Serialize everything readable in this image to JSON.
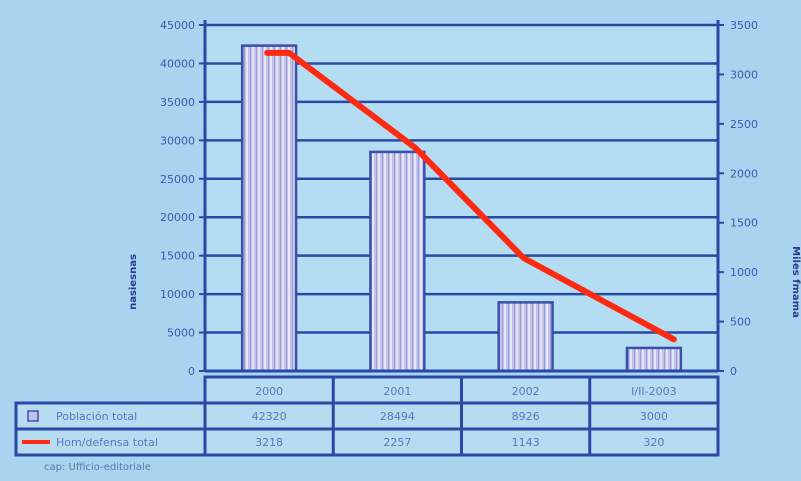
{
  "chart_data": {
    "type": "bar",
    "categories": [
      "2000",
      "2001",
      "2002",
      "I/II-2003"
    ],
    "left_axis": {
      "label": "nasiesnas",
      "ylim": [
        0,
        45000
      ],
      "ticks": [
        "0",
        "5000",
        "10000",
        "15000",
        "20000",
        "25000",
        "30000",
        "35000",
        "40000",
        "45000"
      ]
    },
    "right_axis": {
      "label": "Miles fmama",
      "ylim": [
        0,
        3500
      ],
      "ticks": [
        "0",
        "500",
        "1000",
        "1500",
        "2000",
        "2500",
        "3000",
        "3500"
      ]
    },
    "series": [
      {
        "name": "Población total",
        "kind": "bar",
        "axis": "left",
        "values": [
          42320,
          28494,
          8926,
          3000
        ],
        "table_values": [
          "42320",
          "28494",
          "8926",
          "3000"
        ],
        "color": "#b9b9e6"
      },
      {
        "name": "Hom/defensa total",
        "kind": "line",
        "axis": "right",
        "values": [
          3218,
          2257,
          1143,
          320
        ],
        "table_values": [
          "3218",
          "2257",
          "1143",
          "320"
        ],
        "color": "#ff2a10"
      }
    ],
    "grid": true,
    "legend": "table-below",
    "source": "cap: Ufficio-editoriale"
  }
}
